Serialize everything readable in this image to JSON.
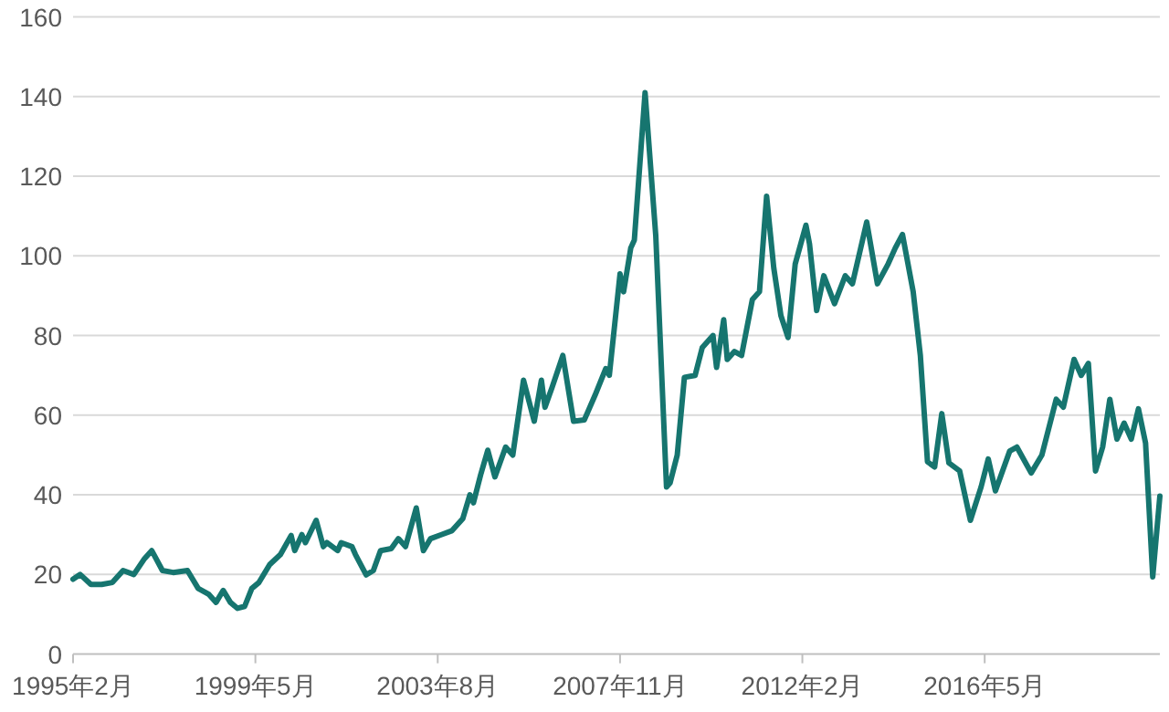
{
  "chart_data": {
    "type": "line",
    "color": "#16756f",
    "grid": "y",
    "xlim": [
      "1995-02",
      "2020-06"
    ],
    "ylim": [
      0,
      160
    ],
    "yticks": [
      0,
      20,
      40,
      60,
      80,
      100,
      120,
      140,
      160
    ],
    "xticks": [
      {
        "value": "1995-02",
        "label": "1995年2月"
      },
      {
        "value": "1999-05",
        "label": "1999年5月"
      },
      {
        "value": "2003-08",
        "label": "2003年8月"
      },
      {
        "value": "2007-11",
        "label": "2007年11月"
      },
      {
        "value": "2012-02",
        "label": "2012年2月"
      },
      {
        "value": "2016-05",
        "label": "2016年5月"
      }
    ],
    "x": [
      "1995-02",
      "1995-04",
      "1995-07",
      "1995-10",
      "1996-01",
      "1996-04",
      "1996-07",
      "1996-10",
      "1996-12",
      "1997-03",
      "1997-06",
      "1997-10",
      "1998-01",
      "1998-04",
      "1998-06",
      "1998-08",
      "1998-10",
      "1998-12",
      "1999-02",
      "1999-04",
      "1999-06",
      "1999-09",
      "1999-12",
      "2000-03",
      "2000-04",
      "2000-06",
      "2000-07",
      "2000-10",
      "2000-12",
      "2001-01",
      "2001-04",
      "2001-05",
      "2001-08",
      "2001-09",
      "2001-12",
      "2002-02",
      "2002-04",
      "2002-07",
      "2002-09",
      "2002-11",
      "2003-02",
      "2003-04",
      "2003-06",
      "2003-09",
      "2003-12",
      "2004-03",
      "2004-05",
      "2004-06",
      "2004-08",
      "2004-10",
      "2004-12",
      "2005-03",
      "2005-05",
      "2005-08",
      "2005-11",
      "2006-01",
      "2006-02",
      "2006-04",
      "2006-07",
      "2006-10",
      "2007-01",
      "2007-04",
      "2007-07",
      "2007-08",
      "2007-11",
      "2007-12",
      "2008-02",
      "2008-03",
      "2008-06",
      "2008-09",
      "2008-12",
      "2009-01",
      "2009-03",
      "2009-05",
      "2009-08",
      "2009-10",
      "2010-01",
      "2010-02",
      "2010-04",
      "2010-05",
      "2010-07",
      "2010-09",
      "2010-12",
      "2011-02",
      "2011-04",
      "2011-06",
      "2011-08",
      "2011-10",
      "2011-12",
      "2012-03",
      "2012-04",
      "2012-06",
      "2012-08",
      "2012-11",
      "2013-02",
      "2013-04",
      "2013-08",
      "2013-11",
      "2014-02",
      "2014-04",
      "2014-06",
      "2014-09",
      "2014-11",
      "2015-01",
      "2015-03",
      "2015-05",
      "2015-07",
      "2015-10",
      "2016-01",
      "2016-04",
      "2016-06",
      "2016-08",
      "2016-12",
      "2017-02",
      "2017-06",
      "2017-09",
      "2018-01",
      "2018-03",
      "2018-06",
      "2018-08",
      "2018-10",
      "2018-12",
      "2019-02",
      "2019-04",
      "2019-06",
      "2019-08",
      "2019-10",
      "2019-12",
      "2020-02",
      "2020-04",
      "2020-06"
    ],
    "values": [
      18.8,
      20,
      17.5,
      17.5,
      18,
      21,
      20,
      24,
      26,
      21,
      20.5,
      21,
      16.5,
      15,
      13,
      16,
      13,
      11.5,
      12,
      16.5,
      18,
      22.5,
      25,
      29.8,
      26,
      30,
      28,
      33.6,
      27,
      28,
      26,
      28,
      27,
      25,
      19.9,
      21,
      26,
      26.5,
      29,
      27,
      36.7,
      26,
      29,
      30,
      31,
      34,
      40,
      38,
      45,
      51.2,
      44.5,
      52,
      50,
      68.8,
      58.5,
      68.8,
      62,
      67,
      75,
      58.5,
      58.8,
      65,
      71.7,
      70,
      95.5,
      91,
      102,
      104,
      141,
      105,
      42,
      43,
      50,
      69.5,
      70,
      77,
      80,
      72,
      84,
      74,
      76,
      75,
      89,
      91,
      115,
      97,
      85,
      79.5,
      98,
      107.7,
      103,
      86.3,
      95,
      88,
      95,
      93,
      108.5,
      93,
      98,
      102,
      105.4,
      91,
      75,
      48.3,
      47,
      60.4,
      48,
      46,
      33.6,
      42,
      49,
      41,
      51,
      52,
      45.5,
      50,
      64,
      62,
      74,
      70,
      73,
      46,
      52,
      64,
      54,
      58,
      54,
      61.6,
      53,
      19.4,
      39.7
    ]
  }
}
